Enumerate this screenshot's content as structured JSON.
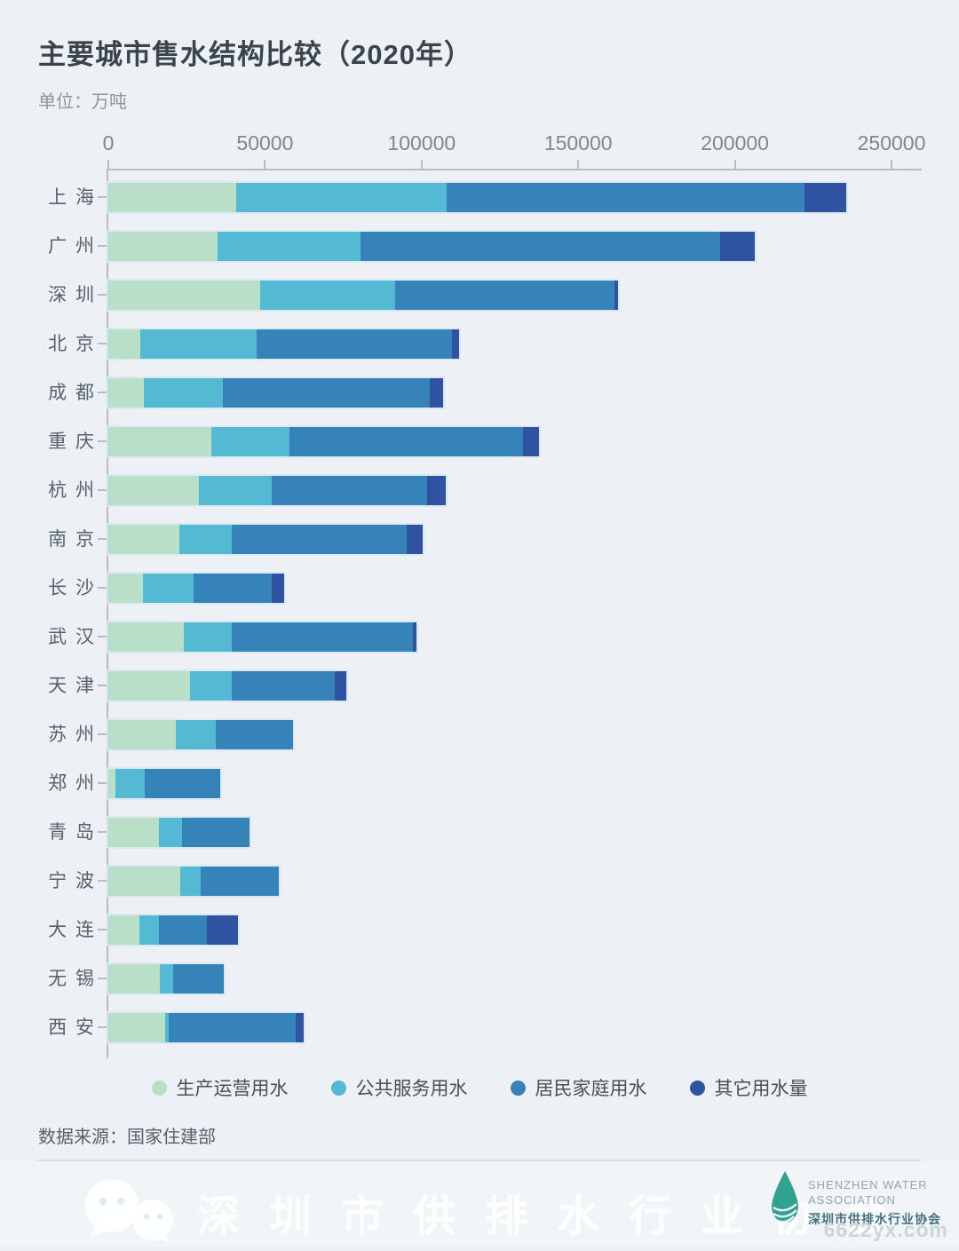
{
  "header": {
    "title": "主要城市售水结构比较（2020年）",
    "unit_label": "单位：万吨"
  },
  "chart_data": {
    "type": "bar",
    "orientation": "horizontal",
    "stacked": true,
    "title": "主要城市售水结构比较（2020年）",
    "unit": "万吨",
    "xlim": [
      0,
      250000
    ],
    "x_ticks": [
      0,
      50000,
      100000,
      150000,
      200000,
      250000
    ],
    "grid": false,
    "legend_position": "bottom",
    "categories": [
      "上 海",
      "广 州",
      "深 圳",
      "北 京",
      "成 都",
      "重 庆",
      "杭 州",
      "南 京",
      "长 沙",
      "武 汉",
      "天 津",
      "苏 州",
      "郑 州",
      "青 岛",
      "宁 波",
      "大 连",
      "无 锡",
      "西 安"
    ],
    "series": [
      {
        "name": "生产运营用水",
        "color": "#b9dfc9",
        "values": [
          40700,
          34900,
          48400,
          10300,
          11300,
          32800,
          28900,
          22800,
          11100,
          24200,
          26100,
          21500,
          2300,
          16200,
          23000,
          9800,
          16400,
          18100
        ]
      },
      {
        "name": "公共服务用水",
        "color": "#54b9d2",
        "values": [
          67400,
          45600,
          43100,
          37100,
          25300,
          25000,
          23200,
          16600,
          16000,
          15100,
          13300,
          12700,
          9400,
          7400,
          6500,
          6400,
          4300,
          1200
        ]
      },
      {
        "name": "居民家庭用水",
        "color": "#3583b8",
        "values": [
          114100,
          114800,
          70000,
          62400,
          66100,
          74600,
          49600,
          55900,
          25100,
          58000,
          32800,
          24700,
          23900,
          21600,
          25000,
          15300,
          16100,
          40600
        ]
      },
      {
        "name": "其它用水量",
        "color": "#2f53a0",
        "values": [
          13400,
          11000,
          1100,
          2100,
          4200,
          5100,
          5900,
          5000,
          3800,
          1100,
          3800,
          0,
          0,
          0,
          0,
          10000,
          0,
          2400
        ]
      }
    ]
  },
  "source": "数据来源：国家住建部",
  "footer": {
    "watermark_text": "深圳市供排水行业协会",
    "site_watermark": "6622yx.com",
    "logo": {
      "line1": "SHENZHEN WATER",
      "line2": "ASSOCIATION",
      "line3": "深圳市供排水行业协会"
    }
  },
  "colors": {
    "background": "#edf1f5",
    "axis": "#b4bec4",
    "title_text": "#39444b",
    "label_text": "#55626b",
    "logo_teal": "#2fa390"
  }
}
